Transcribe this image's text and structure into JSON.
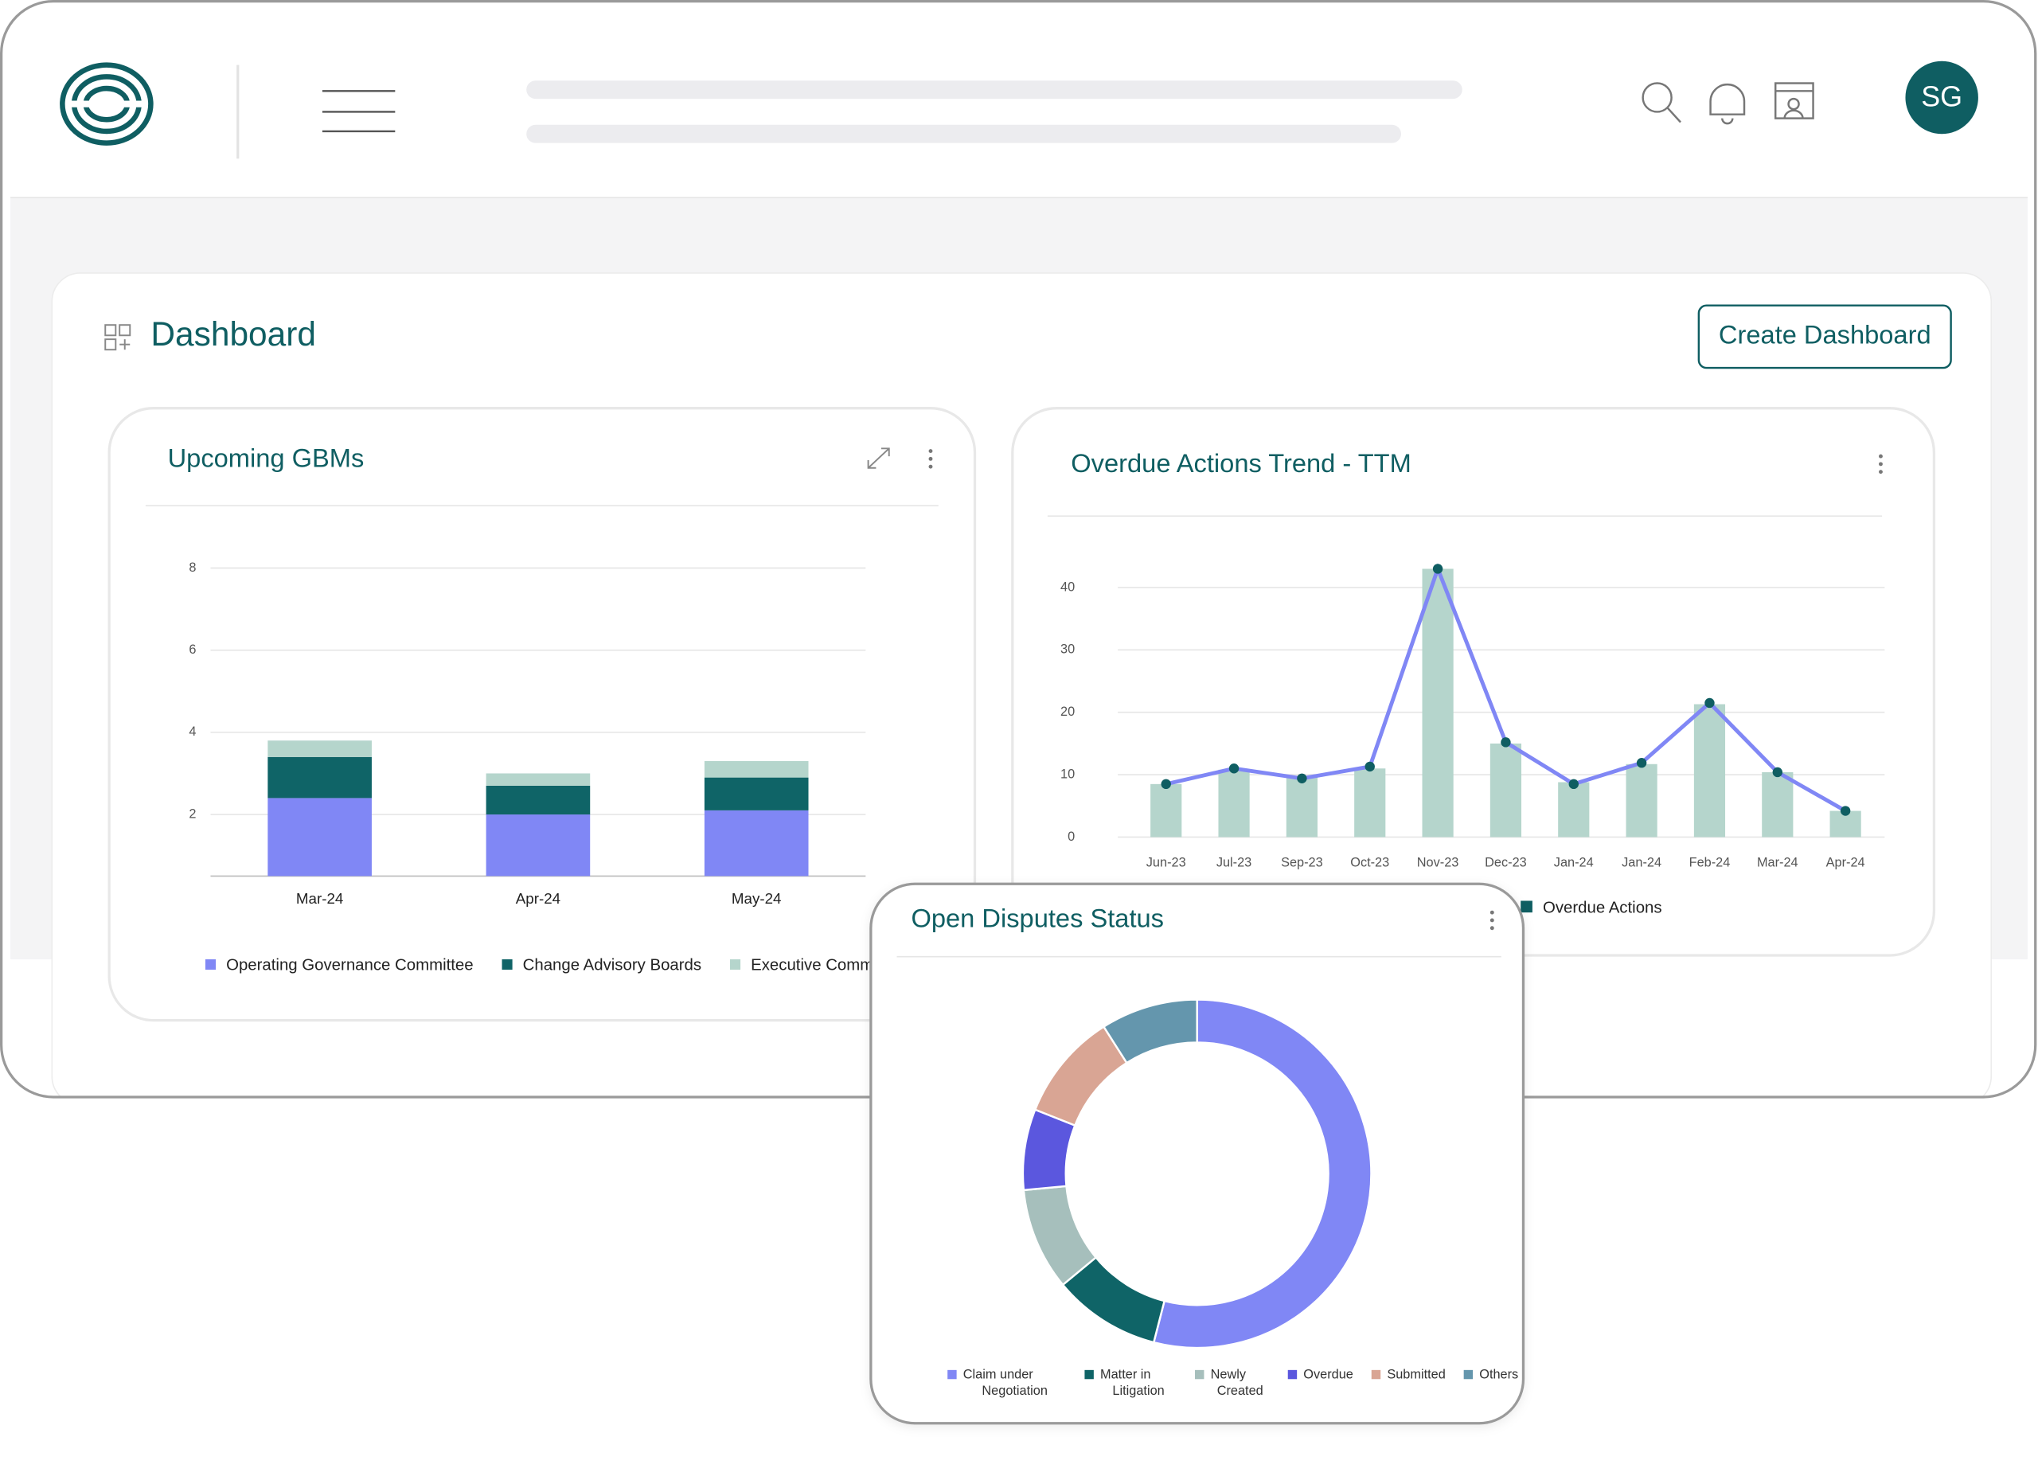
{
  "header": {
    "avatar": "SG"
  },
  "dashboard": {
    "title": "Dashboard",
    "button": "Create Dashboard"
  },
  "chart_data": [
    {
      "type": "stacked_bar",
      "title": "Upcoming GBMs",
      "categories": [
        "Mar-24",
        "Apr-24",
        "May-24"
      ],
      "series": [
        {
          "name": "Operating Governance Committee",
          "color": "#8087f5",
          "values": [
            2.4,
            2.0,
            2.1
          ]
        },
        {
          "name": "Change Advisory Boards",
          "color": "#0f6467",
          "values": [
            1.0,
            0.7,
            0.8
          ]
        },
        {
          "name": "Executive Commit",
          "color": "#b5d5cc",
          "values": [
            0.4,
            0.3,
            0.4
          ]
        }
      ],
      "ylim": [
        0.5,
        8
      ],
      "yticks": [
        2,
        4,
        6,
        8
      ],
      "grid": true
    },
    {
      "type": "bar_line",
      "title": "Overdue Actions Trend - TTM",
      "categories": [
        "Jun-23",
        "Jul-23",
        "Sep-23",
        "Oct-23",
        "Nov-23",
        "Dec-23",
        "Jan-24",
        "Jan-24",
        "Feb-24",
        "Mar-24",
        "Apr-24"
      ],
      "series": [
        {
          "type": "bar",
          "color": "#b5d5cc",
          "values": [
            8.5,
            10.8,
            9.6,
            11,
            43,
            15,
            8.8,
            11.7,
            21.3,
            10.4,
            4.2
          ]
        },
        {
          "type": "line",
          "name": "Overdue Actions",
          "color": "#8087f5",
          "marker_color": "#0f5e62",
          "values": [
            8.5,
            11,
            9.4,
            11.3,
            43,
            15.2,
            8.5,
            11.9,
            21.5,
            10.4,
            4.2
          ]
        }
      ],
      "ylim": [
        0,
        45
      ],
      "yticks": [
        0,
        10,
        20,
        30,
        40
      ],
      "grid": true
    },
    {
      "type": "donut",
      "title": "Open Disputes Status",
      "categories": [
        "Claim under Negotiation",
        "Matter in Litigation",
        "Newly Created",
        "Overdue",
        "Submitted",
        "Others"
      ],
      "values": [
        54,
        10,
        9.5,
        7.5,
        10,
        9
      ],
      "colors": [
        "#8087f5",
        "#0f6467",
        "#a6bfbc",
        "#5b57de",
        "#d9a594",
        "#6496ad"
      ]
    }
  ]
}
